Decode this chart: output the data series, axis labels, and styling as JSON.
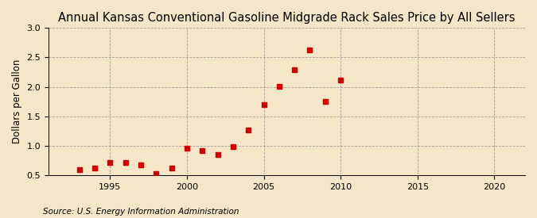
{
  "title": "Annual Kansas Conventional Gasoline Midgrade Rack Sales Price by All Sellers",
  "ylabel": "Dollars per Gallon",
  "source": "Source: U.S. Energy Information Administration",
  "background_color": "#f5e6c8",
  "marker_color": "#cc0000",
  "years": [
    1993,
    1994,
    1995,
    1996,
    1997,
    1998,
    1999,
    2000,
    2001,
    2002,
    2003,
    2004,
    2005,
    2006,
    2007,
    2008,
    2009,
    2010
  ],
  "values": [
    0.6,
    0.62,
    0.72,
    0.72,
    0.67,
    0.53,
    0.62,
    0.96,
    0.92,
    0.85,
    0.99,
    1.27,
    1.7,
    2.01,
    2.29,
    2.63,
    1.75,
    2.11
  ],
  "xlim": [
    1991,
    2022
  ],
  "ylim": [
    0.5,
    3.0
  ],
  "xticks": [
    1995,
    2000,
    2005,
    2010,
    2015,
    2020
  ],
  "yticks": [
    0.5,
    1.0,
    1.5,
    2.0,
    2.5,
    3.0
  ],
  "title_fontsize": 10.5,
  "ylabel_fontsize": 8.5,
  "source_fontsize": 7.5,
  "tick_fontsize": 8
}
